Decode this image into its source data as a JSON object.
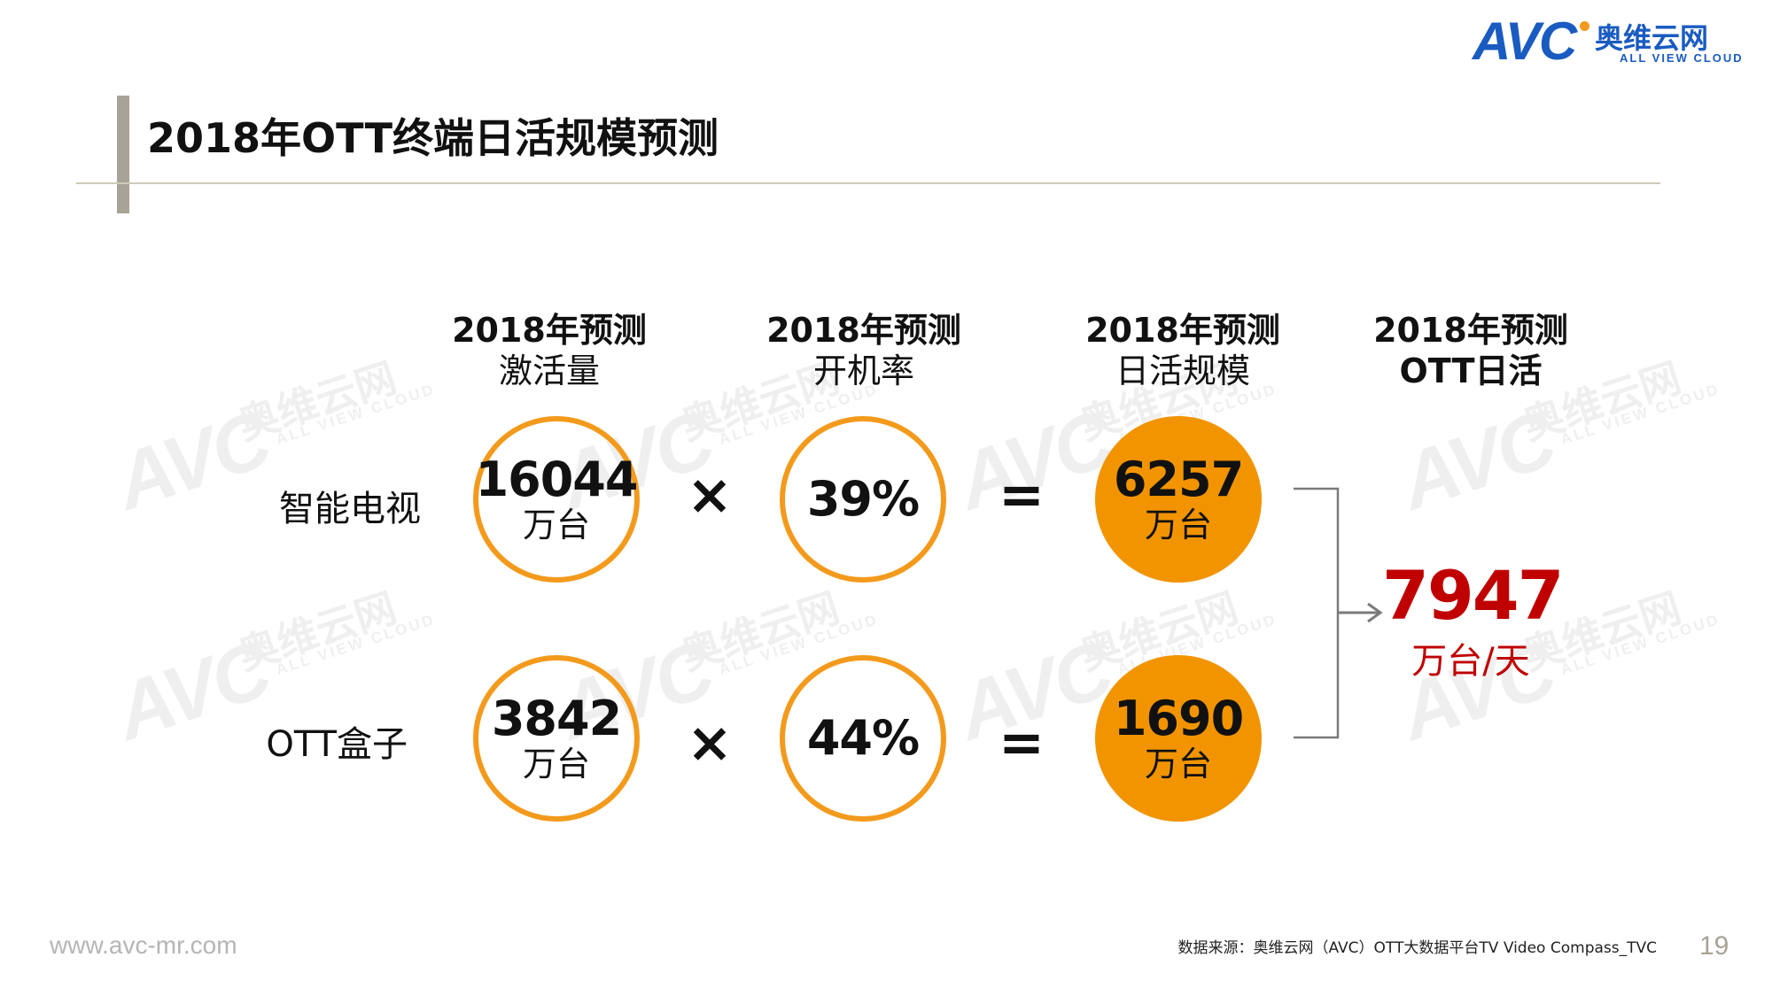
{
  "title": "2018年OTT终端日活规模预测",
  "logo": {
    "brand": "AVC",
    "name_cn": "奥维云网",
    "name_en": "ALL VIEW CLOUD"
  },
  "columns": [
    {
      "line1": "2018年预测",
      "line2": "激活量"
    },
    {
      "line1": "2018年预测",
      "line2": "开机率"
    },
    {
      "line1": "2018年预测",
      "line2": "日活规模"
    },
    {
      "line1": "2018年预测",
      "line2": "OTT日活"
    }
  ],
  "rows": [
    {
      "label": "智能电视",
      "activation": "16044",
      "activation_unit": "万台",
      "rate": "39%",
      "daily": "6257",
      "daily_unit": "万台"
    },
    {
      "label": "OTT盒子",
      "activation": "3842",
      "activation_unit": "万台",
      "rate": "44%",
      "daily": "1690",
      "daily_unit": "万台"
    }
  ],
  "operators": {
    "multiply": "×",
    "equals": "="
  },
  "result": {
    "value": "7947",
    "unit": "万台/天"
  },
  "footer": {
    "url": "www.avc-mr.com",
    "source": "数据来源：奥维云网（AVC）OTT大数据平台TV Video Compass_TVC",
    "page": "19"
  },
  "colors": {
    "accent": "#f39a1c",
    "fill": "#f29400",
    "result": "#c00000",
    "brand": "#1a5bc1"
  }
}
